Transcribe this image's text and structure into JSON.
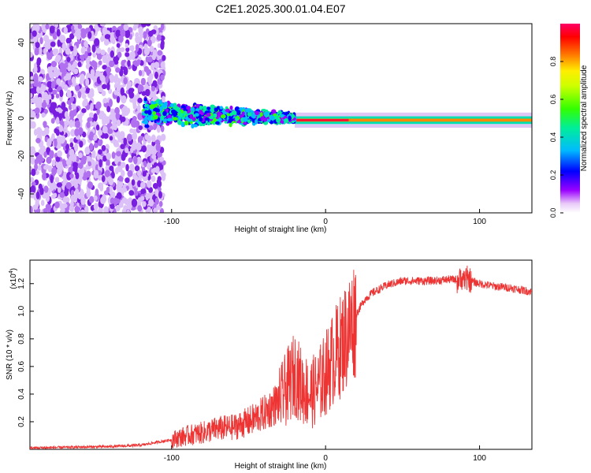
{
  "title": "C2E1.2025.300.01.04.E07",
  "chart_data": [
    {
      "type": "heatmap",
      "xlabel": "Height of straight line (km)",
      "ylabel": "Frequency (Hz)",
      "xlim": [
        -192,
        134
      ],
      "ylim": [
        -50,
        50
      ],
      "xticks": [
        -100,
        0,
        100
      ],
      "yticks": [
        -40,
        -20,
        0,
        20,
        40
      ],
      "xtick_labels": [
        "-100",
        "0",
        "100"
      ],
      "ytick_labels": [
        "-40",
        "-20",
        "0",
        "20",
        "40"
      ],
      "colorbar": {
        "label": "Normalized spectral amplitude",
        "range": [
          0,
          1
        ],
        "ticks": [
          0.0,
          0.2,
          0.4,
          0.6,
          0.8
        ],
        "tick_labels": [
          "0.0",
          "0.2",
          "0.4",
          "0.6",
          "0.8"
        ]
      },
      "regions": [
        {
          "name": "noise",
          "x": [
            -192,
            -105
          ],
          "freq_spread": 50,
          "amplitude": 0.2
        },
        {
          "name": "turbulent",
          "x": [
            -118,
            -20
          ],
          "freq_center": 3,
          "freq_spread": 8,
          "amplitude": 0.4
        },
        {
          "name": "narrowband",
          "x": [
            -20,
            134
          ],
          "freq_center": -1,
          "freq_spread": 2,
          "amplitude": 0.9
        }
      ],
      "peak_x": [
        -20,
        15
      ]
    },
    {
      "type": "line",
      "xlabel": "Height of straight line (km)",
      "ylabel": "SNR (10 * v/v)",
      "yscale_label": "(x10",
      "yscale_exp": "4",
      "xlim": [
        -192,
        134
      ],
      "ylim": [
        0,
        1.37
      ],
      "xticks": [
        -100,
        0,
        100
      ],
      "yticks": [
        0.2,
        0.4,
        0.6,
        0.8,
        1.0,
        1.2
      ],
      "xtick_labels": [
        "-100",
        "0",
        "100"
      ],
      "ytick_labels": [
        "0.2",
        "0.4",
        "0.6",
        "0.8",
        "1.0",
        "1.2"
      ],
      "series": [
        {
          "name": "SNR",
          "color": "#ee3333",
          "x": [
            -192,
            -140,
            -120,
            -110,
            -100,
            -90,
            -80,
            -70,
            -60,
            -50,
            -40,
            -30,
            -25,
            -20,
            -15,
            -10,
            -5,
            0,
            5,
            10,
            15,
            20,
            25,
            30,
            40,
            50,
            60,
            70,
            80,
            90,
            100,
            110,
            120,
            134
          ],
          "values": [
            0.01,
            0.02,
            0.03,
            0.05,
            0.07,
            0.1,
            0.12,
            0.15,
            0.16,
            0.2,
            0.26,
            0.35,
            0.45,
            0.55,
            0.45,
            0.4,
            0.45,
            0.55,
            0.66,
            0.75,
            0.86,
            0.98,
            1.08,
            1.13,
            1.19,
            1.22,
            1.22,
            1.22,
            1.23,
            1.23,
            1.2,
            1.18,
            1.17,
            1.14
          ]
        }
      ]
    }
  ]
}
